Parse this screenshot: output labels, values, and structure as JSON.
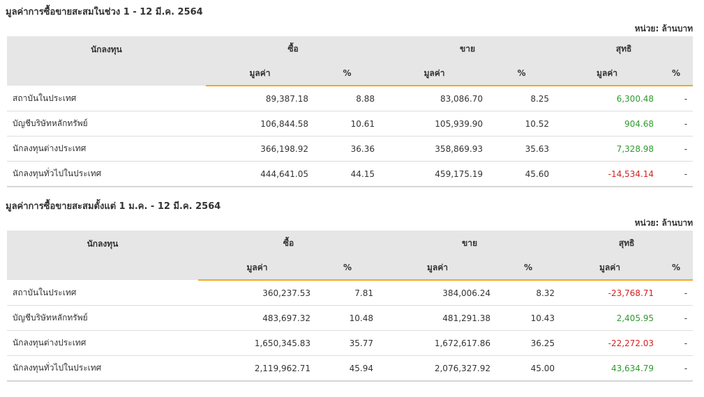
{
  "sections": [
    {
      "title": "มูลค่าการซื้อขายสะสมในช่วง 1 - 12 มี.ค. 2564",
      "unit": "หน่วย: ล้านบาท",
      "table": {
        "header": {
          "investor": "นักลงทุน",
          "groups": [
            "ซื้อ",
            "ขาย",
            "สุทธิ"
          ],
          "sub": [
            "มูลค่า",
            "%",
            "มูลค่า",
            "%",
            "มูลค่า",
            "%"
          ]
        },
        "rows": [
          [
            "สถาบันในประเทศ",
            "89,387.18",
            "8.88",
            "83,086.70",
            "8.25",
            "6,300.48",
            "-"
          ],
          [
            "บัญชีบริษัทหลักทรัพย์",
            "106,844.58",
            "10.61",
            "105,939.90",
            "10.52",
            "904.68",
            "-"
          ],
          [
            "นักลงทุนต่างประเทศ",
            "366,198.92",
            "36.36",
            "358,869.93",
            "35.63",
            "7,328.98",
            "-"
          ],
          [
            "นักลงทุนทั่วไปในประเทศ",
            "444,641.05",
            "44.15",
            "459,175.19",
            "45.60",
            "-14,534.14",
            "-"
          ]
        ]
      }
    },
    {
      "title": "มูลค่าการซื้อขายสะสมตั้งแต่ 1 ม.ค. - 12 มี.ค. 2564",
      "unit": "หน่วย: ล้านบาท",
      "table": {
        "header": {
          "investor": "นักลงทุน",
          "groups": [
            "ซื้อ",
            "ขาย",
            "สุทธิ"
          ],
          "sub": [
            "มูลค่า",
            "%",
            "มูลค่า",
            "%",
            "มูลค่า",
            "%"
          ]
        },
        "rows": [
          [
            "สถาบันในประเทศ",
            "360,237.53",
            "7.81",
            "384,006.24",
            "8.32",
            "-23,768.71",
            "-"
          ],
          [
            "บัญชีบริษัทหลักทรัพย์",
            "483,697.32",
            "10.48",
            "481,291.38",
            "10.43",
            "2,405.95",
            "-"
          ],
          [
            "นักลงทุนต่างประเทศ",
            "1,650,345.83",
            "35.77",
            "1,672,617.86",
            "36.25",
            "-22,272.03",
            "-"
          ],
          [
            "นักลงทุนทั่วไปในประเทศ",
            "2,119,962.71",
            "45.94",
            "2,076,327.92",
            "45.00",
            "43,634.79",
            "-"
          ]
        ]
      }
    }
  ]
}
